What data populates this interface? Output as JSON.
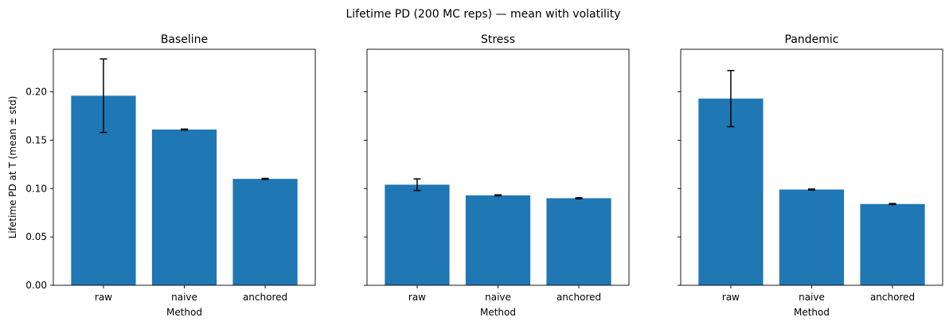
{
  "figure_title": "Lifetime PD (200 MC reps) — mean with volatility",
  "chart_data": [
    {
      "type": "bar",
      "title": "Baseline",
      "xlabel": "Method",
      "ylabel": "Lifetime PD at T (mean ± std)",
      "categories": [
        "raw",
        "naive",
        "anchored"
      ],
      "values": [
        0.196,
        0.161,
        0.11
      ],
      "errors": [
        0.038,
        0.0005,
        0.0005
      ],
      "ylim": [
        0,
        0.244
      ],
      "yticks": [
        "0.00",
        "0.05",
        "0.10",
        "0.15",
        "0.20"
      ],
      "show_ytick_labels": true,
      "bar_color": "#1f77b4",
      "error_color": "#000000"
    },
    {
      "type": "bar",
      "title": "Stress",
      "xlabel": "Method",
      "ylabel": "",
      "categories": [
        "raw",
        "naive",
        "anchored"
      ],
      "values": [
        0.104,
        0.093,
        0.09
      ],
      "errors": [
        0.006,
        0.0005,
        0.0005
      ],
      "ylim": [
        0,
        0.244
      ],
      "yticks": [
        "0.00",
        "0.05",
        "0.10",
        "0.15",
        "0.20"
      ],
      "show_ytick_labels": false,
      "bar_color": "#1f77b4",
      "error_color": "#000000"
    },
    {
      "type": "bar",
      "title": "Pandemic",
      "xlabel": "Method",
      "ylabel": "",
      "categories": [
        "raw",
        "naive",
        "anchored"
      ],
      "values": [
        0.193,
        0.099,
        0.084
      ],
      "errors": [
        0.029,
        0.0005,
        0.0005
      ],
      "ylim": [
        0,
        0.244
      ],
      "yticks": [
        "0.00",
        "0.05",
        "0.10",
        "0.15",
        "0.20"
      ],
      "show_ytick_labels": false,
      "bar_color": "#1f77b4",
      "error_color": "#000000"
    }
  ]
}
